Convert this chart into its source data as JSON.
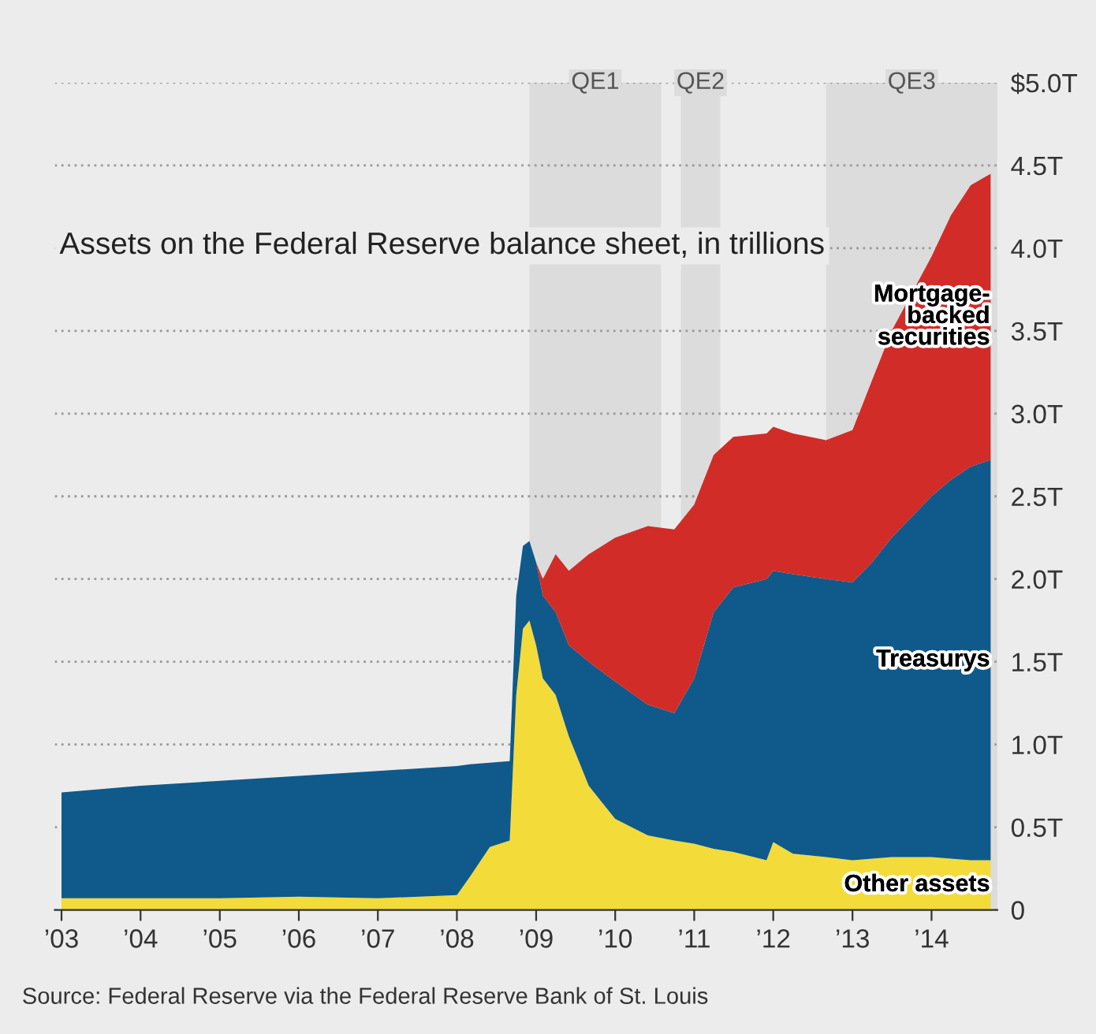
{
  "chart_data": {
    "type": "area",
    "stacked": true,
    "title": "Assets on the Federal Reserve balance sheet, in trillions",
    "x": [
      "2003-01",
      "2004-01",
      "2005-01",
      "2006-01",
      "2007-01",
      "2008-01",
      "2008-03",
      "2008-06",
      "2008-09",
      "2008-10",
      "2008-11",
      "2008-12",
      "2009-01",
      "2009-02",
      "2009-04",
      "2009-06",
      "2009-09",
      "2010-01",
      "2010-06",
      "2010-10",
      "2011-01",
      "2011-04",
      "2011-07",
      "2011-12",
      "2012-01",
      "2012-04",
      "2012-09",
      "2013-01",
      "2013-04",
      "2013-07",
      "2014-01",
      "2014-04",
      "2014-07",
      "2014-10"
    ],
    "series": [
      {
        "name": "Other assets",
        "color": "#f3db3a",
        "values": [
          0.07,
          0.07,
          0.07,
          0.08,
          0.07,
          0.09,
          0.2,
          0.38,
          0.42,
          1.3,
          1.7,
          1.75,
          1.6,
          1.4,
          1.3,
          1.05,
          0.75,
          0.55,
          0.45,
          0.42,
          0.4,
          0.37,
          0.35,
          0.3,
          0.41,
          0.34,
          0.32,
          0.3,
          0.31,
          0.32,
          0.32,
          0.31,
          0.3,
          0.3
        ]
      },
      {
        "name": "Treasurys",
        "color": "#0f5a8a",
        "values": [
          0.64,
          0.68,
          0.71,
          0.73,
          0.77,
          0.78,
          0.68,
          0.51,
          0.48,
          0.6,
          0.5,
          0.48,
          0.5,
          0.5,
          0.5,
          0.55,
          0.75,
          0.83,
          0.79,
          0.77,
          1.0,
          1.43,
          1.6,
          1.7,
          1.64,
          1.69,
          1.68,
          1.68,
          1.79,
          1.93,
          2.18,
          2.29,
          2.38,
          2.42
        ]
      },
      {
        "name": "Mortgage-\nbacked\nsecurities",
        "color": "#d12c28",
        "values": [
          0,
          0,
          0,
          0,
          0,
          0,
          0,
          0,
          0,
          0,
          0,
          0,
          0,
          0.1,
          0.35,
          0.45,
          0.65,
          0.87,
          1.08,
          1.11,
          1.05,
          0.95,
          0.91,
          0.88,
          0.87,
          0.85,
          0.84,
          0.92,
          1.1,
          1.25,
          1.45,
          1.6,
          1.7,
          1.73
        ]
      }
    ],
    "xlim": [
      "2002-12",
      "2014-11"
    ],
    "xticks": [
      {
        "value": "2003",
        "label": "’03"
      },
      {
        "value": "2004",
        "label": "’04"
      },
      {
        "value": "2005",
        "label": "’05"
      },
      {
        "value": "2006",
        "label": "’06"
      },
      {
        "value": "2007",
        "label": "’07"
      },
      {
        "value": "2008",
        "label": "’08"
      },
      {
        "value": "2009",
        "label": "’09"
      },
      {
        "value": "2010",
        "label": "’10"
      },
      {
        "value": "2011",
        "label": "’11"
      },
      {
        "value": "2012",
        "label": "’12"
      },
      {
        "value": "2013",
        "label": "’13"
      },
      {
        "value": "2014",
        "label": "’14"
      }
    ],
    "ylim": [
      0,
      5.0
    ],
    "yticks": [
      0,
      {
        "value": 0.5,
        "label": "0.5T"
      },
      {
        "value": 1.0,
        "label": "1.0T"
      },
      {
        "value": 1.5,
        "label": "1.5T"
      },
      {
        "value": 2.0,
        "label": "2.0T"
      },
      {
        "value": 2.5,
        "label": "2.5T"
      },
      {
        "value": 3.0,
        "label": "3.0T"
      },
      {
        "value": 3.5,
        "label": "3.5T"
      },
      {
        "value": 4.0,
        "label": "4.0T"
      },
      {
        "value": 4.5,
        "label": "4.5T"
      },
      {
        "value": 5.0,
        "label": "$5.0T"
      }
    ],
    "bands": [
      {
        "axis": "x",
        "from": "2008-12",
        "to": "2010-08",
        "label": "QE1",
        "color": "#dcdcdc"
      },
      {
        "axis": "x",
        "from": "2010-11",
        "to": "2011-05",
        "label": "QE2",
        "color": "#dcdcdc"
      },
      {
        "axis": "x",
        "from": "2012-09",
        "to": "2014-11",
        "label": "QE3",
        "color": "#dcdcdc"
      }
    ],
    "grid": "y",
    "legend": false,
    "annotations": [
      "Source: Federal Reserve via the Federal Reserve Bank of St. Louis"
    ]
  }
}
